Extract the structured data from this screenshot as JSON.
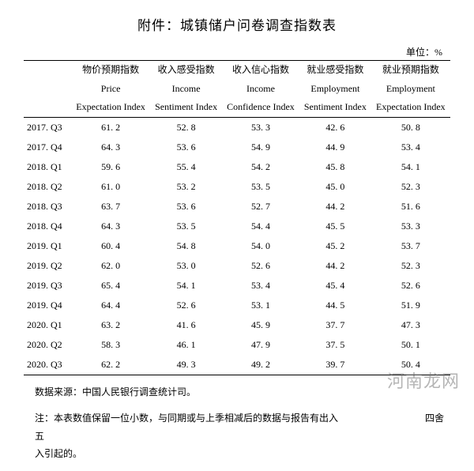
{
  "title": "附件：城镇储户问卷调查指数表",
  "unit_label": "单位：%",
  "columns": [
    {
      "cn": "",
      "en1": "",
      "en2": ""
    },
    {
      "cn": "物价预期指数",
      "en1": "Price",
      "en2": "Expectation Index"
    },
    {
      "cn": "收入感受指数",
      "en1": "Income",
      "en2": "Sentiment Index"
    },
    {
      "cn": "收入信心指数",
      "en1": "Income",
      "en2": "Confidence Index"
    },
    {
      "cn": "就业感受指数",
      "en1": "Employment",
      "en2": "Sentiment Index"
    },
    {
      "cn": "就业预期指数",
      "en1": "Employment",
      "en2": "Expectation Index"
    }
  ],
  "rows": [
    {
      "period": "2017. Q3",
      "v": [
        "61. 2",
        "52. 8",
        "53. 3",
        "42. 6",
        "50. 8"
      ]
    },
    {
      "period": "2017. Q4",
      "v": [
        "64. 3",
        "53. 6",
        "54. 9",
        "44. 9",
        "53. 4"
      ]
    },
    {
      "period": "2018. Q1",
      "v": [
        "59. 6",
        "55. 4",
        "54. 2",
        "45. 8",
        "54. 1"
      ]
    },
    {
      "period": "2018. Q2",
      "v": [
        "61. 0",
        "53. 2",
        "53. 5",
        "45. 0",
        "52. 3"
      ]
    },
    {
      "period": "2018. Q3",
      "v": [
        "63. 7",
        "53. 6",
        "52. 7",
        "44. 2",
        "51. 6"
      ]
    },
    {
      "period": "2018. Q4",
      "v": [
        "64. 3",
        "53. 5",
        "54. 4",
        "45. 5",
        "53. 3"
      ]
    },
    {
      "period": "2019. Q1",
      "v": [
        "60. 4",
        "54. 8",
        "54. 0",
        "45. 2",
        "53. 7"
      ]
    },
    {
      "period": "2019. Q2",
      "v": [
        "62. 0",
        "53. 0",
        "52. 6",
        "44. 2",
        "52. 3"
      ]
    },
    {
      "period": "2019. Q3",
      "v": [
        "65. 4",
        "54. 1",
        "53. 4",
        "45. 4",
        "52. 6"
      ]
    },
    {
      "period": "2019. Q4",
      "v": [
        "64. 4",
        "52. 6",
        "53. 1",
        "44. 5",
        "51. 9"
      ]
    },
    {
      "period": "2020. Q1",
      "v": [
        "63. 2",
        "41. 6",
        "45. 9",
        "37. 7",
        "47. 3"
      ]
    },
    {
      "period": "2020. Q2",
      "v": [
        "58. 3",
        "46. 1",
        "47. 9",
        "37. 5",
        "50. 1"
      ]
    },
    {
      "period": "2020. Q3",
      "v": [
        "62. 2",
        "49. 3",
        "49. 2",
        "39. 7",
        "50. 4"
      ]
    }
  ],
  "source": "数据来源：中国人民银行调查统计司。",
  "note_line1": "注：本表数值保留一位小数，与同期或与上季相减后的数据与报告有出入",
  "note_line2": "四舍五",
  "note_line3": "入引起的。",
  "watermark": "河南龙网"
}
